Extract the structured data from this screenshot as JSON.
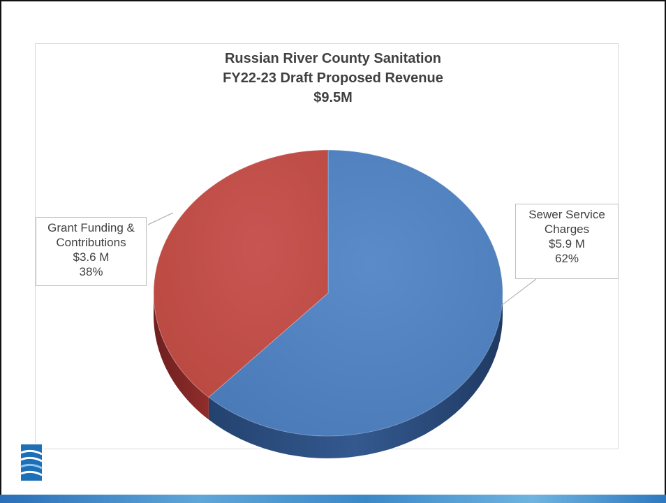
{
  "chart_data": {
    "type": "pie",
    "title": [
      "Russian River County Sanitation",
      "FY22-23 Draft Proposed Revenue",
      "$9.5M"
    ],
    "slices": [
      {
        "label_lines": [
          "Sewer Service",
          "Charges"
        ],
        "amount": "$5.9 M",
        "percent_label": "62%",
        "value": 62,
        "color": "#4f81bd"
      },
      {
        "label_lines": [
          "Grant Funding &",
          "Contributions"
        ],
        "amount": "$3.6 M",
        "percent_label": "38%",
        "value": 38,
        "color": "#c0504d"
      }
    ],
    "style": "3d",
    "legend": "none",
    "data_labels": "callouts"
  }
}
